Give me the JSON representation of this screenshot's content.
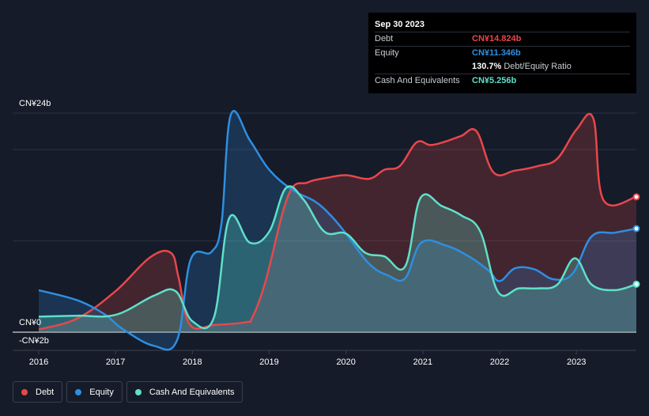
{
  "chart_data": {
    "type": "area",
    "x_ticks": [
      "2016",
      "2017",
      "2018",
      "2019",
      "2020",
      "2021",
      "2022",
      "2023"
    ],
    "y_top_label": "CN¥24b",
    "y_zero_label": "CN¥0",
    "y_min_label": "-CN¥2b",
    "ylim": [
      -2,
      24
    ],
    "x_range": [
      2016,
      2023.78
    ],
    "series": [
      {
        "name": "Debt",
        "color": "#e8474b",
        "points": [
          [
            2016,
            0.3
          ],
          [
            2016.5,
            1.5
          ],
          [
            2017,
            4.5
          ],
          [
            2017.45,
            8.2
          ],
          [
            2017.72,
            8.7
          ],
          [
            2017.82,
            6.0
          ],
          [
            2017.97,
            0.8
          ],
          [
            2018.3,
            0.8
          ],
          [
            2018.7,
            1.1
          ],
          [
            2018.78,
            1.6
          ],
          [
            2018.95,
            5.5
          ],
          [
            2019.25,
            15.0
          ],
          [
            2019.5,
            16.4
          ],
          [
            2019.75,
            16.9
          ],
          [
            2020.0,
            17.2
          ],
          [
            2020.3,
            16.8
          ],
          [
            2020.5,
            17.8
          ],
          [
            2020.7,
            18.2
          ],
          [
            2020.92,
            20.8
          ],
          [
            2021.1,
            20.5
          ],
          [
            2021.3,
            20.9
          ],
          [
            2021.5,
            21.5
          ],
          [
            2021.7,
            22.0
          ],
          [
            2021.92,
            17.5
          ],
          [
            2022.2,
            17.7
          ],
          [
            2022.5,
            18.2
          ],
          [
            2022.75,
            19.0
          ],
          [
            2023.0,
            22.2
          ],
          [
            2023.22,
            23.4
          ],
          [
            2023.35,
            14.5
          ],
          [
            2023.78,
            14.824
          ]
        ]
      },
      {
        "name": "Equity",
        "color": "#2d8fe2",
        "points": [
          [
            2016,
            4.6
          ],
          [
            2016.5,
            3.5
          ],
          [
            2016.85,
            2.0
          ],
          [
            2017.1,
            0.3
          ],
          [
            2017.5,
            -1.5
          ],
          [
            2017.8,
            -0.9
          ],
          [
            2017.98,
            8.0
          ],
          [
            2018.25,
            8.8
          ],
          [
            2018.38,
            12.0
          ],
          [
            2018.5,
            23.8
          ],
          [
            2018.75,
            21.0
          ],
          [
            2019.0,
            17.8
          ],
          [
            2019.3,
            15.6
          ],
          [
            2019.6,
            14.3
          ],
          [
            2019.8,
            12.8
          ],
          [
            2020.0,
            10.8
          ],
          [
            2020.3,
            7.5
          ],
          [
            2020.55,
            6.2
          ],
          [
            2020.77,
            5.9
          ],
          [
            2020.98,
            9.8
          ],
          [
            2021.3,
            9.5
          ],
          [
            2021.6,
            8.3
          ],
          [
            2021.85,
            6.8
          ],
          [
            2022.0,
            5.6
          ],
          [
            2022.2,
            7.0
          ],
          [
            2022.45,
            6.9
          ],
          [
            2022.7,
            5.8
          ],
          [
            2022.95,
            6.4
          ],
          [
            2023.2,
            10.5
          ],
          [
            2023.5,
            10.9
          ],
          [
            2023.78,
            11.346
          ]
        ]
      },
      {
        "name": "Cash And Equivalents",
        "color": "#5fe0c9",
        "points": [
          [
            2016,
            1.7
          ],
          [
            2016.5,
            1.8
          ],
          [
            2017.0,
            1.9
          ],
          [
            2017.5,
            4.0
          ],
          [
            2017.78,
            4.5
          ],
          [
            2018.0,
            1.2
          ],
          [
            2018.28,
            1.6
          ],
          [
            2018.48,
            12.5
          ],
          [
            2018.75,
            9.8
          ],
          [
            2019.0,
            11.0
          ],
          [
            2019.22,
            15.8
          ],
          [
            2019.45,
            14.5
          ],
          [
            2019.72,
            11.0
          ],
          [
            2020.0,
            10.8
          ],
          [
            2020.25,
            8.7
          ],
          [
            2020.5,
            8.3
          ],
          [
            2020.77,
            7.2
          ],
          [
            2020.97,
            14.7
          ],
          [
            2021.25,
            13.8
          ],
          [
            2021.5,
            12.8
          ],
          [
            2021.75,
            11.0
          ],
          [
            2021.98,
            4.4
          ],
          [
            2022.25,
            4.8
          ],
          [
            2022.5,
            4.8
          ],
          [
            2022.75,
            5.2
          ],
          [
            2022.98,
            8.1
          ],
          [
            2023.2,
            5.2
          ],
          [
            2023.5,
            4.6
          ],
          [
            2023.78,
            5.256
          ]
        ]
      }
    ]
  },
  "tooltip": {
    "date": "Sep 30 2023",
    "debt_label": "Debt",
    "debt_value": "CN¥14.824b",
    "equity_label": "Equity",
    "equity_value": "CN¥11.346b",
    "ratio_value": "130.7%",
    "ratio_label": "Debt/Equity Ratio",
    "cash_label": "Cash And Equivalents",
    "cash_value": "CN¥5.256b"
  },
  "legend": {
    "debt": "Debt",
    "equity": "Equity",
    "cash": "Cash And Equivalents",
    "debt_color": "#e8474b",
    "equity_color": "#2d8fe2",
    "cash_color": "#5fe0c9"
  }
}
